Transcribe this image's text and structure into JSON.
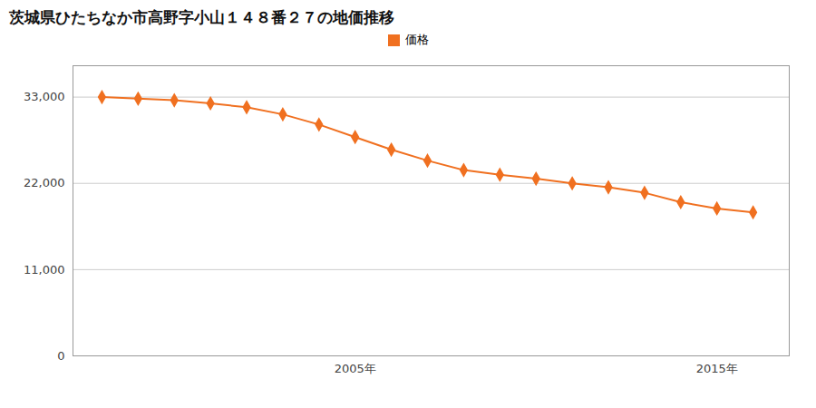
{
  "chart_data": {
    "type": "line",
    "title": "茨城県ひたちなか市高野字小山１４８番２７の地価推移",
    "x": [
      1998,
      1999,
      2000,
      2001,
      2002,
      2003,
      2004,
      2005,
      2006,
      2007,
      2008,
      2009,
      2010,
      2011,
      2012,
      2013,
      2014,
      2015,
      2016
    ],
    "series": [
      {
        "name": "価格",
        "color": "#f07020",
        "marker": "diamond",
        "values": [
          33000,
          32800,
          32600,
          32200,
          31700,
          30800,
          29500,
          27900,
          26300,
          24900,
          23700,
          23100,
          22600,
          22000,
          21500,
          20800,
          19600,
          18800,
          18300
        ]
      }
    ],
    "xlim": [
      1997.2,
      2017.0
    ],
    "xticks": [
      {
        "value": 2005,
        "label": "2005年"
      },
      {
        "value": 2015,
        "label": "2015年"
      }
    ],
    "ylim": [
      0,
      37000
    ],
    "yticks": [
      0,
      {
        "value": 11000,
        "label": "11,000"
      },
      {
        "value": 22000,
        "label": "22,000"
      },
      {
        "value": 33000,
        "label": "33,000"
      }
    ],
    "grid": "y",
    "legend": "top"
  }
}
